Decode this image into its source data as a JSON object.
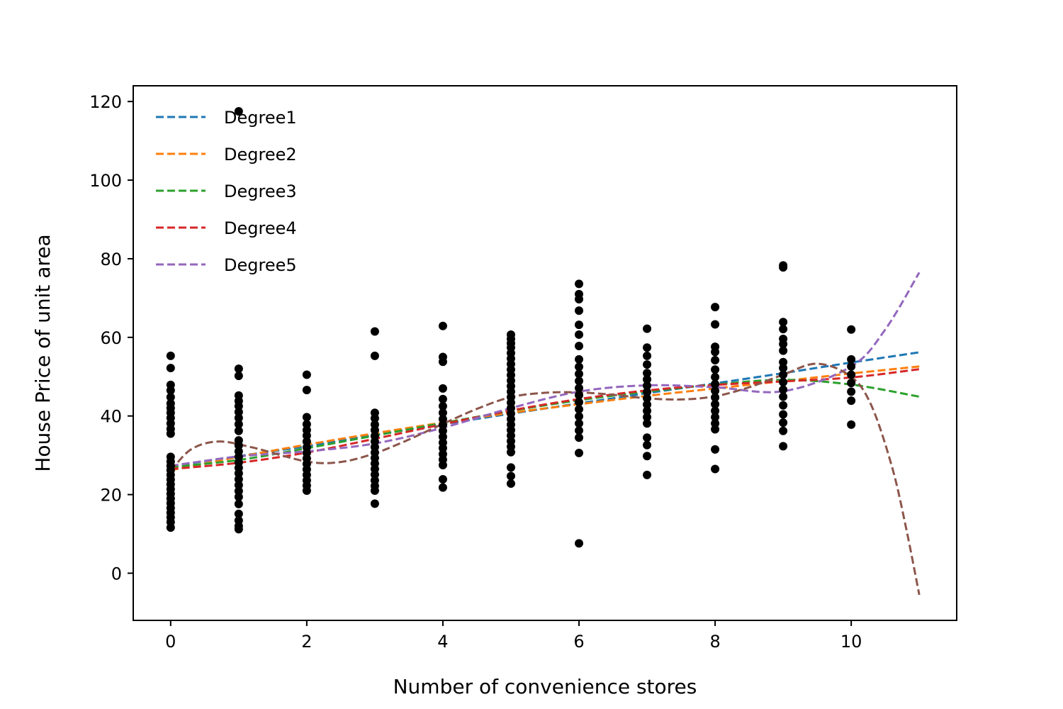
{
  "chart_data": {
    "type": "scatter",
    "title": "",
    "xlabel": "Number of convenience stores",
    "ylabel": "House Price of unit area",
    "xlim": [
      -0.55,
      11.55
    ],
    "ylim": [
      -12,
      124
    ],
    "xticks": [
      0,
      2,
      4,
      6,
      8,
      10
    ],
    "yticks": [
      0,
      20,
      40,
      60,
      80,
      100,
      120
    ],
    "grid": false,
    "legend_position": "top-left",
    "scatter": {
      "color": "#000000",
      "points": [
        [
          0,
          55.3
        ],
        [
          0,
          52.2
        ],
        [
          0,
          47.9
        ],
        [
          0,
          46.5
        ],
        [
          0,
          44.8
        ],
        [
          0,
          43.2
        ],
        [
          0,
          42.0
        ],
        [
          0,
          40.8
        ],
        [
          0,
          39.5
        ],
        [
          0,
          38.1
        ],
        [
          0,
          36.7
        ],
        [
          0,
          35.5
        ],
        [
          0,
          29.6
        ],
        [
          0,
          28.4
        ],
        [
          0,
          27.3
        ],
        [
          0,
          26.2
        ],
        [
          0,
          25.0
        ],
        [
          0,
          23.8
        ],
        [
          0,
          22.6
        ],
        [
          0,
          21.4
        ],
        [
          0,
          20.2
        ],
        [
          0,
          19.0
        ],
        [
          0,
          17.8
        ],
        [
          0,
          16.6
        ],
        [
          0,
          15.4
        ],
        [
          0,
          14.2
        ],
        [
          0,
          13.0
        ],
        [
          0,
          11.6
        ],
        [
          1,
          117.5
        ],
        [
          1,
          52.0
        ],
        [
          1,
          50.2
        ],
        [
          1,
          45.2
        ],
        [
          1,
          43.8
        ],
        [
          1,
          42.5
        ],
        [
          1,
          41.0
        ],
        [
          1,
          39.5
        ],
        [
          1,
          37.9
        ],
        [
          1,
          36.2
        ],
        [
          1,
          33.8
        ],
        [
          1,
          32.5
        ],
        [
          1,
          31.0
        ],
        [
          1,
          29.6
        ],
        [
          1,
          28.2
        ],
        [
          1,
          26.8
        ],
        [
          1,
          25.4
        ],
        [
          1,
          23.9
        ],
        [
          1,
          22.4
        ],
        [
          1,
          20.9
        ],
        [
          1,
          19.4
        ],
        [
          1,
          17.6
        ],
        [
          1,
          15.1
        ],
        [
          1,
          13.4
        ],
        [
          1,
          12.0
        ],
        [
          1,
          11.2
        ],
        [
          2,
          50.5
        ],
        [
          2,
          46.6
        ],
        [
          2,
          39.7
        ],
        [
          2,
          37.9
        ],
        [
          2,
          36.4
        ],
        [
          2,
          35.0
        ],
        [
          2,
          33.5
        ],
        [
          2,
          32.0
        ],
        [
          2,
          30.6
        ],
        [
          2,
          29.2
        ],
        [
          2,
          27.8
        ],
        [
          2,
          26.4
        ],
        [
          2,
          25.0
        ],
        [
          2,
          23.6
        ],
        [
          2,
          22.3
        ],
        [
          2,
          21.0
        ],
        [
          3,
          61.5
        ],
        [
          3,
          55.3
        ],
        [
          3,
          40.8
        ],
        [
          3,
          39.4
        ],
        [
          3,
          37.8
        ],
        [
          3,
          36.4
        ],
        [
          3,
          34.9
        ],
        [
          3,
          33.5
        ],
        [
          3,
          32.1
        ],
        [
          3,
          30.7
        ],
        [
          3,
          29.3
        ],
        [
          3,
          27.9
        ],
        [
          3,
          26.5
        ],
        [
          3,
          25.1
        ],
        [
          3,
          23.6
        ],
        [
          3,
          22.2
        ],
        [
          3,
          21.0
        ],
        [
          3,
          17.7
        ],
        [
          4,
          62.9
        ],
        [
          4,
          55.0
        ],
        [
          4,
          53.8
        ],
        [
          4,
          47.0
        ],
        [
          4,
          44.3
        ],
        [
          4,
          42.5
        ],
        [
          4,
          40.8
        ],
        [
          4,
          39.2
        ],
        [
          4,
          37.7
        ],
        [
          4,
          36.2
        ],
        [
          4,
          34.7
        ],
        [
          4,
          33.2
        ],
        [
          4,
          31.8
        ],
        [
          4,
          30.3
        ],
        [
          4,
          28.9
        ],
        [
          4,
          27.5
        ],
        [
          4,
          23.9
        ],
        [
          4,
          21.8
        ],
        [
          5,
          60.7
        ],
        [
          5,
          59.6
        ],
        [
          5,
          58.5
        ],
        [
          5,
          57.4
        ],
        [
          5,
          56.0
        ],
        [
          5,
          54.6
        ],
        [
          5,
          53.2
        ],
        [
          5,
          51.8
        ],
        [
          5,
          50.4
        ],
        [
          5,
          49.0
        ],
        [
          5,
          47.6
        ],
        [
          5,
          46.2
        ],
        [
          5,
          44.8
        ],
        [
          5,
          43.4
        ],
        [
          5,
          42.0
        ],
        [
          5,
          40.6
        ],
        [
          5,
          39.2
        ],
        [
          5,
          37.8
        ],
        [
          5,
          36.4
        ],
        [
          5,
          35.0
        ],
        [
          5,
          33.6
        ],
        [
          5,
          32.2
        ],
        [
          5,
          30.8
        ],
        [
          5,
          26.9
        ],
        [
          5,
          24.7
        ],
        [
          5,
          22.8
        ],
        [
          6,
          73.6
        ],
        [
          6,
          71.0
        ],
        [
          6,
          69.7
        ],
        [
          6,
          66.8
        ],
        [
          6,
          63.2
        ],
        [
          6,
          60.7
        ],
        [
          6,
          57.8
        ],
        [
          6,
          54.4
        ],
        [
          6,
          52.5
        ],
        [
          6,
          50.7
        ],
        [
          6,
          48.9
        ],
        [
          6,
          47.1
        ],
        [
          6,
          45.3
        ],
        [
          6,
          43.5
        ],
        [
          6,
          41.7
        ],
        [
          6,
          39.9
        ],
        [
          6,
          38.1
        ],
        [
          6,
          36.3
        ],
        [
          6,
          34.5
        ],
        [
          6,
          30.6
        ],
        [
          6,
          7.6
        ],
        [
          7,
          62.2
        ],
        [
          7,
          57.4
        ],
        [
          7,
          55.3
        ],
        [
          7,
          53.1
        ],
        [
          7,
          50.9
        ],
        [
          7,
          49.3
        ],
        [
          7,
          47.7
        ],
        [
          7,
          46.1
        ],
        [
          7,
          44.5
        ],
        [
          7,
          42.9
        ],
        [
          7,
          41.3
        ],
        [
          7,
          39.7
        ],
        [
          7,
          38.1
        ],
        [
          7,
          34.5
        ],
        [
          7,
          32.6
        ],
        [
          7,
          29.8
        ],
        [
          7,
          25.0
        ],
        [
          8,
          67.7
        ],
        [
          8,
          63.3
        ],
        [
          8,
          57.6
        ],
        [
          8,
          56.3
        ],
        [
          8,
          54.2
        ],
        [
          8,
          51.8
        ],
        [
          8,
          49.9
        ],
        [
          8,
          48.1
        ],
        [
          8,
          46.4
        ],
        [
          8,
          44.7
        ],
        [
          8,
          43.0
        ],
        [
          8,
          41.3
        ],
        [
          8,
          39.7
        ],
        [
          8,
          38.1
        ],
        [
          8,
          36.6
        ],
        [
          8,
          31.5
        ],
        [
          8,
          26.5
        ],
        [
          9,
          78.3
        ],
        [
          9,
          77.8
        ],
        [
          9,
          63.9
        ],
        [
          9,
          62.1
        ],
        [
          9,
          59.6
        ],
        [
          9,
          58.3
        ],
        [
          9,
          56.6
        ],
        [
          9,
          53.7
        ],
        [
          9,
          52.2
        ],
        [
          9,
          50.5
        ],
        [
          9,
          48.6
        ],
        [
          9,
          46.7
        ],
        [
          9,
          44.9
        ],
        [
          9,
          42.7
        ],
        [
          9,
          40.4
        ],
        [
          9,
          38.3
        ],
        [
          9,
          36.2
        ],
        [
          9,
          32.3
        ],
        [
          10,
          62.0
        ],
        [
          10,
          54.4
        ],
        [
          10,
          52.6
        ],
        [
          10,
          50.5
        ],
        [
          10,
          48.4
        ],
        [
          10,
          46.2
        ],
        [
          10,
          43.9
        ],
        [
          10,
          37.8
        ]
      ]
    },
    "series": [
      {
        "name": "Degree1",
        "color": "#1f77b4",
        "x": [
          0,
          1,
          2,
          3,
          4,
          5,
          6,
          7,
          8,
          9,
          10,
          11
        ],
        "y": [
          27.2,
          29.8,
          32.3,
          35.2,
          37.9,
          40.6,
          43.2,
          45.8,
          48.3,
          50.9,
          53.6,
          56.2
        ]
      },
      {
        "name": "Degree2",
        "color": "#ff7f0e",
        "x": [
          0,
          1,
          2,
          3,
          4,
          5,
          6,
          7,
          8,
          9,
          10,
          11
        ],
        "y": [
          26.2,
          29.6,
          32.7,
          35.6,
          38.3,
          40.8,
          43.0,
          45.1,
          47.0,
          48.9,
          50.8,
          52.6
        ]
      },
      {
        "name": "Degree3",
        "color": "#2ca02c",
        "x": [
          0,
          1,
          2,
          3,
          4,
          5,
          6,
          7,
          8,
          9,
          10,
          11
        ],
        "y": [
          27.0,
          28.8,
          31.8,
          35.0,
          38.2,
          41.3,
          44.0,
          46.2,
          48.0,
          49.2,
          48.0,
          44.9
        ]
      },
      {
        "name": "Degree4",
        "color": "#d62728",
        "x": [
          0,
          1,
          2,
          3,
          4,
          5,
          6,
          7,
          8,
          9,
          10,
          11
        ],
        "y": [
          26.5,
          28.1,
          30.7,
          34.2,
          37.9,
          41.4,
          44.3,
          46.5,
          47.9,
          48.8,
          49.8,
          51.9
        ]
      },
      {
        "name": "Degree5",
        "color": "#9467bd",
        "x": [
          0,
          1,
          2,
          3,
          4,
          5,
          6,
          7,
          8,
          9,
          10,
          10.5,
          11
        ],
        "y": [
          27.3,
          29.7,
          31.0,
          33.0,
          37.0,
          42.0,
          46.2,
          47.8,
          47.3,
          46.3,
          52.6,
          62.0,
          76.5
        ]
      },
      {
        "name": "",
        "color": "#8c564b",
        "x": [
          0,
          0.3,
          0.7,
          1.2,
          2,
          2.5,
          3,
          3.5,
          4,
          4.5,
          5,
          5.5,
          6,
          6.5,
          7,
          7.5,
          8,
          8.5,
          9,
          9.5,
          10,
          10.3,
          10.6,
          10.8,
          11
        ],
        "y": [
          26.0,
          31.5,
          33.5,
          32.0,
          28.4,
          28.3,
          30.5,
          34.0,
          38.0,
          41.8,
          44.8,
          45.9,
          46.0,
          45.4,
          44.5,
          44.2,
          45.0,
          47.3,
          50.5,
          53.3,
          50.0,
          42.5,
          27.0,
          12.0,
          -5.5
        ]
      }
    ]
  }
}
